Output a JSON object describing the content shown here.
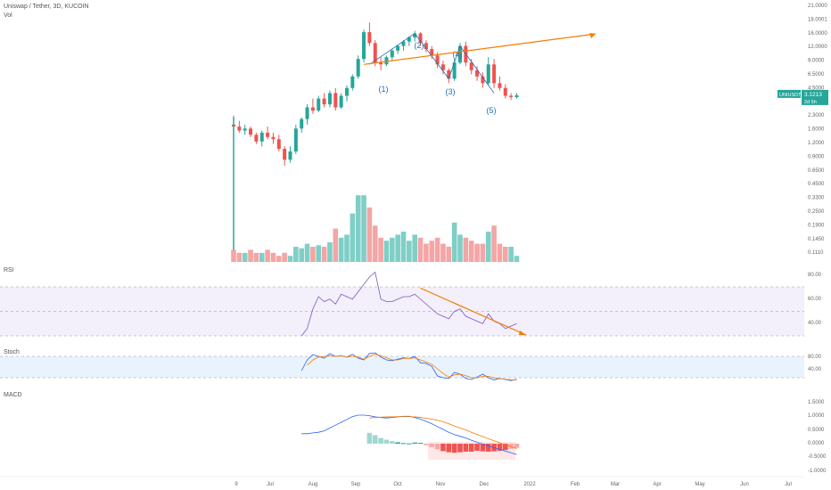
{
  "header": {
    "symbol_line": "Uniswap / Tether, 3D, KUCOIN",
    "vol_label": "Vol"
  },
  "panels": {
    "rsi_label": "RSI",
    "stoch_label": "Stoch",
    "macd_label": "MACD"
  },
  "price_badge": {
    "symbol": "UNIUSDT",
    "price": "3.1213",
    "countdown": "2d 5h",
    "color": "#26a69a"
  },
  "colors": {
    "up": "#26a69a",
    "down": "#ef5350",
    "trend": "#f57c00",
    "rsi_line": "#7e57c2",
    "stoch_k": "#2962ff",
    "stoch_d": "#f57c00",
    "macd_line": "#2962ff",
    "signal_line": "#f57c00"
  },
  "chart_data": [
    {
      "type": "candlestick",
      "price_axis_labels": [
        "21.0000",
        "18.0001",
        "16.0000",
        "12.0000",
        "9.0000",
        "6.5000",
        "4.5000",
        "3.1213",
        "2.3000",
        "1.6000",
        "1.2000",
        "0.9000",
        "0.6500",
        "0.4500",
        "0.3300",
        "0.2500",
        "0.1900",
        "0.1450",
        "0.1110"
      ],
      "time_axis_labels": [
        "9",
        "Jul",
        "Aug",
        "Sep",
        "Oct",
        "Nov",
        "Dec",
        "2022",
        "Feb",
        "Mar",
        "Apr",
        "May",
        "Jun",
        "Jul"
      ],
      "wave_labels": [
        "(1)",
        "(2)",
        "(3)",
        "(4)",
        "(5)"
      ],
      "candles": [
        [
          2.2,
          2.45,
          1.95,
          2.15
        ],
        [
          2.15,
          2.3,
          2.0,
          2.05
        ],
        [
          2.05,
          2.2,
          1.95,
          2.1
        ],
        [
          2.1,
          2.15,
          1.9,
          1.95
        ],
        [
          1.95,
          2.0,
          1.75,
          1.8
        ],
        [
          1.8,
          2.05,
          1.7,
          2.0
        ],
        [
          2.0,
          2.15,
          1.85,
          1.9
        ],
        [
          1.9,
          2.0,
          1.75,
          1.85
        ],
        [
          1.85,
          1.95,
          1.6,
          1.65
        ],
        [
          1.65,
          1.7,
          1.35,
          1.45
        ],
        [
          1.45,
          1.7,
          1.4,
          1.6
        ],
        [
          1.6,
          2.2,
          1.55,
          2.1
        ],
        [
          2.1,
          2.4,
          2.0,
          2.35
        ],
        [
          2.35,
          2.8,
          2.2,
          2.7
        ],
        [
          2.7,
          3.0,
          2.5,
          2.6
        ],
        [
          2.6,
          3.1,
          2.55,
          3.0
        ],
        [
          3.0,
          3.2,
          2.7,
          2.8
        ],
        [
          2.8,
          3.3,
          2.7,
          3.2
        ],
        [
          3.2,
          3.4,
          2.6,
          2.7
        ],
        [
          2.7,
          3.2,
          2.65,
          3.1
        ],
        [
          3.1,
          3.5,
          2.9,
          3.4
        ],
        [
          3.4,
          4.0,
          3.3,
          3.9
        ],
        [
          3.9,
          5.0,
          3.8,
          4.8
        ],
        [
          4.8,
          6.8,
          4.6,
          6.6
        ],
        [
          6.6,
          7.4,
          5.6,
          5.8
        ],
        [
          5.8,
          6.0,
          4.4,
          4.6
        ],
        [
          4.6,
          4.9,
          4.2,
          4.5
        ],
        [
          4.5,
          5.0,
          4.4,
          4.9
        ],
        [
          4.9,
          5.4,
          4.7,
          5.3
        ],
        [
          5.3,
          5.7,
          5.1,
          5.6
        ],
        [
          5.6,
          6.0,
          5.3,
          5.9
        ],
        [
          5.9,
          6.3,
          5.6,
          6.2
        ],
        [
          6.2,
          6.7,
          5.9,
          6.5
        ],
        [
          6.5,
          6.6,
          5.6,
          5.8
        ],
        [
          5.8,
          6.0,
          5.2,
          5.4
        ],
        [
          5.4,
          5.6,
          4.8,
          5.0
        ],
        [
          5.0,
          5.2,
          4.3,
          4.5
        ],
        [
          4.5,
          4.7,
          4.0,
          4.2
        ],
        [
          4.2,
          4.3,
          3.6,
          3.8
        ],
        [
          3.8,
          4.8,
          3.7,
          4.6
        ],
        [
          4.6,
          5.8,
          4.5,
          5.6
        ],
        [
          5.6,
          5.9,
          4.4,
          4.6
        ],
        [
          4.6,
          4.8,
          4.0,
          4.2
        ],
        [
          4.2,
          4.4,
          3.7,
          3.9
        ],
        [
          3.9,
          4.1,
          3.4,
          3.6
        ],
        [
          3.6,
          4.9,
          3.5,
          4.5
        ],
        [
          4.5,
          4.8,
          3.4,
          3.6
        ],
        [
          3.6,
          3.9,
          3.3,
          3.4
        ],
        [
          3.4,
          3.55,
          3.0,
          3.1
        ],
        [
          3.1,
          3.2,
          2.95,
          3.05
        ],
        [
          3.05,
          3.2,
          3.0,
          3.12
        ]
      ],
      "volume": [
        [
          0.4,
          0
        ],
        [
          0.3,
          0
        ],
        [
          0.3,
          1
        ],
        [
          0.4,
          0
        ],
        [
          0.3,
          0
        ],
        [
          0.3,
          1
        ],
        [
          0.4,
          0
        ],
        [
          0.3,
          0
        ],
        [
          0.2,
          0
        ],
        [
          0.3,
          0
        ],
        [
          0.2,
          1
        ],
        [
          0.5,
          1
        ],
        [
          0.45,
          1
        ],
        [
          0.6,
          1
        ],
        [
          0.5,
          0
        ],
        [
          0.55,
          1
        ],
        [
          0.5,
          0
        ],
        [
          0.65,
          1
        ],
        [
          1.1,
          0
        ],
        [
          0.8,
          1
        ],
        [
          0.9,
          1
        ],
        [
          1.6,
          1
        ],
        [
          2.2,
          1
        ],
        [
          2.2,
          1
        ],
        [
          1.8,
          0
        ],
        [
          1.2,
          0
        ],
        [
          0.8,
          0
        ],
        [
          0.7,
          1
        ],
        [
          0.8,
          1
        ],
        [
          0.9,
          1
        ],
        [
          1.0,
          1
        ],
        [
          0.7,
          1
        ],
        [
          0.9,
          1
        ],
        [
          0.8,
          0
        ],
        [
          0.6,
          0
        ],
        [
          0.7,
          0
        ],
        [
          0.8,
          0
        ],
        [
          0.6,
          0
        ],
        [
          0.5,
          0
        ],
        [
          1.3,
          1
        ],
        [
          0.9,
          1
        ],
        [
          0.8,
          0
        ],
        [
          0.7,
          0
        ],
        [
          0.6,
          0
        ],
        [
          0.6,
          0
        ],
        [
          1.0,
          1
        ],
        [
          1.2,
          0
        ],
        [
          0.6,
          0
        ],
        [
          0.5,
          0
        ],
        [
          0.5,
          1
        ],
        [
          0.2,
          1
        ]
      ],
      "trendline": [
        [
          23,
          4.5
        ],
        [
          51,
          12.5
        ]
      ],
      "wave_path": [
        [
          24,
          4.5
        ],
        [
          32,
          6.5
        ],
        [
          38,
          3.8
        ],
        [
          40,
          5.6
        ],
        [
          46,
          3.2
        ]
      ]
    },
    {
      "type": "line",
      "title": "RSI",
      "levels": [
        70,
        50,
        30
      ],
      "axis_labels": [
        "80.00",
        "60.00",
        "40.00"
      ],
      "values": [
        null,
        null,
        null,
        null,
        null,
        null,
        null,
        null,
        null,
        null,
        null,
        null,
        30,
        36,
        52,
        62,
        58,
        60,
        56,
        64,
        62,
        60,
        66,
        72,
        78,
        82,
        60,
        58,
        58,
        60,
        62,
        62,
        64,
        60,
        56,
        52,
        48,
        46,
        44,
        50,
        52,
        46,
        44,
        42,
        40,
        48,
        42,
        40,
        36,
        38,
        40
      ],
      "trendline": [
        [
          33,
          69
        ],
        [
          50,
          33
        ]
      ]
    },
    {
      "type": "line",
      "title": "Stoch",
      "levels": [
        80,
        20
      ],
      "axis_labels": [
        "80.00",
        "40.00"
      ],
      "k_values": [
        null,
        null,
        null,
        null,
        null,
        null,
        null,
        null,
        null,
        null,
        null,
        null,
        40,
        70,
        85,
        80,
        75,
        88,
        80,
        82,
        78,
        86,
        75,
        70,
        88,
        90,
        78,
        70,
        68,
        72,
        76,
        74,
        80,
        62,
        60,
        52,
        25,
        20,
        18,
        35,
        30,
        18,
        15,
        22,
        30,
        20,
        14,
        18,
        15,
        12,
        16
      ],
      "d_values": [
        null,
        null,
        null,
        null,
        null,
        null,
        null,
        null,
        null,
        null,
        null,
        null,
        null,
        55,
        70,
        78,
        80,
        82,
        80,
        82,
        78,
        80,
        78,
        72,
        80,
        86,
        82,
        76,
        70,
        70,
        74,
        74,
        76,
        70,
        64,
        58,
        45,
        32,
        22,
        28,
        30,
        26,
        20,
        20,
        24,
        24,
        20,
        17,
        16,
        14,
        14
      ]
    },
    {
      "type": "bar",
      "title": "MACD",
      "axis_labels": [
        "1.5000",
        "1.0000",
        "0.5000",
        "0.0000",
        "-0.5000",
        "-1.0000"
      ],
      "macd": [
        null,
        null,
        null,
        null,
        null,
        null,
        null,
        null,
        null,
        null,
        null,
        null,
        0.35,
        0.35,
        0.38,
        0.4,
        0.45,
        0.55,
        0.65,
        0.75,
        0.85,
        0.95,
        1.0,
        1.0,
        0.98,
        0.94,
        0.92,
        0.9,
        0.92,
        0.94,
        0.96,
        0.96,
        0.92,
        0.86,
        0.78,
        0.7,
        0.6,
        0.5,
        0.4,
        0.32,
        0.26,
        0.2,
        0.12,
        0.05,
        -0.02,
        -0.08,
        -0.14,
        -0.2,
        -0.26,
        -0.32,
        -0.38
      ],
      "signal": [
        null,
        null,
        null,
        null,
        null,
        null,
        null,
        null,
        null,
        null,
        null,
        null,
        null,
        null,
        null,
        null,
        null,
        null,
        null,
        null,
        null,
        null,
        null,
        null,
        0.9,
        0.92,
        0.93,
        0.94,
        0.94,
        0.95,
        0.95,
        0.95,
        0.94,
        0.92,
        0.89,
        0.86,
        0.82,
        0.77,
        0.7,
        0.62,
        0.55,
        0.48,
        0.4,
        0.32,
        0.25,
        0.17,
        0.1,
        0.03,
        -0.04,
        -0.11,
        -0.17
      ],
      "histogram": [
        null,
        null,
        null,
        null,
        null,
        null,
        null,
        null,
        null,
        null,
        null,
        null,
        null,
        null,
        null,
        null,
        null,
        null,
        null,
        null,
        null,
        null,
        null,
        null,
        0.38,
        0.3,
        0.2,
        0.14,
        0.09,
        0.05,
        0.02,
        0.01,
        0.04,
        0.03,
        -0.05,
        -0.12,
        -0.2,
        -0.26,
        -0.3,
        -0.32,
        -0.3,
        -0.28,
        -0.28,
        -0.25,
        -0.27,
        -0.28,
        -0.27,
        -0.25,
        -0.22,
        -0.18,
        -0.15
      ]
    }
  ]
}
